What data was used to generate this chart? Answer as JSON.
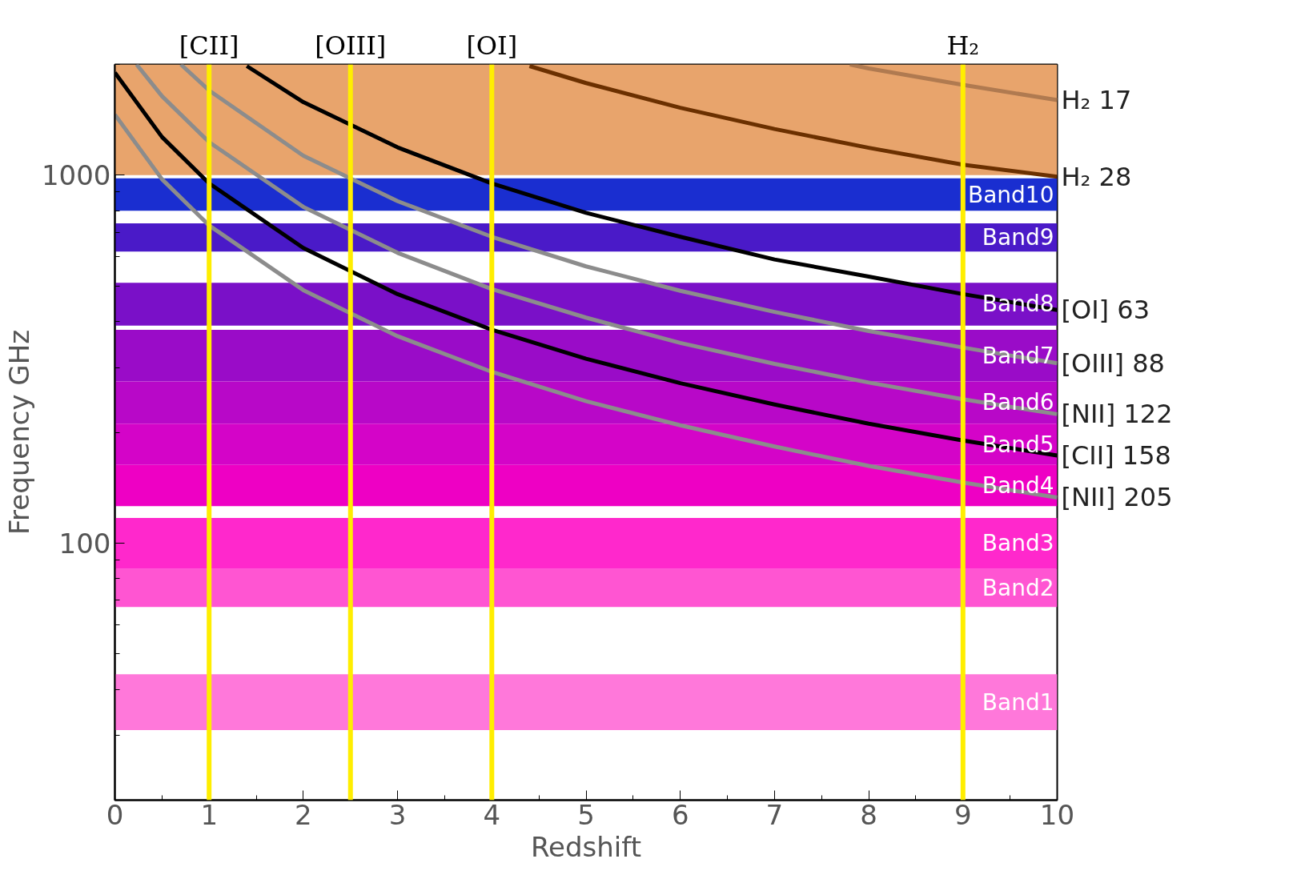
{
  "chart_data": {
    "type": "line",
    "xlabel": "Redshift",
    "ylabel": "Frequency GHz",
    "log": "y",
    "grid": false,
    "marker": "none",
    "line_style": "solid",
    "xlim": [
      0,
      10
    ],
    "xticks": [
      0,
      1,
      2,
      3,
      4,
      5,
      6,
      7,
      8,
      9,
      10
    ],
    "ylim": [
      20,
      2000
    ],
    "yticks": [
      100,
      1000
    ],
    "series": [
      {
        "name": "H₂ 17",
        "color": "#b07a50",
        "x": [
          7.8,
          8,
          9,
          10
        ],
        "values": [
          2000,
          1950,
          1760,
          1600
        ]
      },
      {
        "name": "H₂ 28",
        "color": "#6b3000",
        "x": [
          4.4,
          5,
          6,
          7,
          8,
          9,
          10
        ],
        "values": [
          1980,
          1780,
          1525,
          1335,
          1187,
          1068,
          990
        ]
      },
      {
        "name": "[OI] 63",
        "color": "#000000",
        "x": [
          1.4,
          2,
          3,
          4,
          5,
          6,
          7,
          8,
          9,
          10
        ],
        "values": [
          1980,
          1580,
          1190,
          950,
          790,
          680,
          590,
          530,
          475,
          430
        ]
      },
      {
        "name": "[OIII] 88",
        "color": "#8c8c8c",
        "x": [
          0.7,
          1,
          2,
          3,
          4,
          5,
          6,
          7,
          8,
          9,
          10
        ],
        "values": [
          2000,
          1700,
          1130,
          850,
          680,
          565,
          485,
          425,
          377,
          340,
          308
        ]
      },
      {
        "name": "[NII] 122",
        "color": "#8c8c8c",
        "x": [
          0.23,
          0.5,
          1,
          2,
          3,
          4,
          5,
          6,
          7,
          8,
          9,
          10
        ],
        "values": [
          2000,
          1640,
          1230,
          820,
          615,
          490,
          410,
          350,
          307,
          273,
          246,
          224
        ]
      },
      {
        "name": "[CII] 158",
        "color": "#000000",
        "x": [
          0,
          0.5,
          1,
          2,
          3,
          4,
          5,
          6,
          7,
          8,
          9,
          10
        ],
        "values": [
          1900,
          1270,
          950,
          634,
          475,
          380,
          317,
          272,
          238,
          211,
          190,
          173
        ]
      },
      {
        "name": "[NII] 205",
        "color": "#8c8c8c",
        "x": [
          0,
          0.5,
          1,
          2,
          3,
          4,
          5,
          6,
          7,
          8,
          9,
          10
        ],
        "values": [
          1460,
          975,
          730,
          487,
          365,
          292,
          243,
          209,
          183,
          162,
          146,
          133
        ]
      }
    ],
    "bands": [
      {
        "axis": "y",
        "from": 1000,
        "to": 2000,
        "color": "#e8a46c"
      },
      {
        "axis": "y",
        "from": 800,
        "to": 980,
        "label": "Band10",
        "color": "#1a2ed0"
      },
      {
        "axis": "y",
        "from": 620,
        "to": 740,
        "label": "Band9",
        "color": "#4a1ac8"
      },
      {
        "axis": "y",
        "from": 390,
        "to": 510,
        "label": "Band8",
        "color": "#7a10c8"
      },
      {
        "axis": "y",
        "from": 275,
        "to": 380,
        "label": "Band7",
        "color": "#9a0cc8"
      },
      {
        "axis": "y",
        "from": 211,
        "to": 275,
        "label": "Band6",
        "color": "#b808c8"
      },
      {
        "axis": "y",
        "from": 163,
        "to": 211,
        "label": "Band5",
        "color": "#d404c8"
      },
      {
        "axis": "y",
        "from": 126,
        "to": 163,
        "label": "Band4",
        "color": "#ee00c4"
      },
      {
        "axis": "y",
        "from": 85,
        "to": 117,
        "label": "Band3",
        "color": "#ff28cc"
      },
      {
        "axis": "y",
        "from": 67,
        "to": 85,
        "label": "Band2",
        "color": "#ff55d2"
      },
      {
        "axis": "y",
        "from": 31,
        "to": 44,
        "label": "Band1",
        "color": "#ff78da"
      }
    ],
    "ref_lines": [
      {
        "axis": "x",
        "value": 1,
        "label": "[CII]",
        "color": "#ffee00"
      },
      {
        "axis": "x",
        "value": 2.5,
        "label": "[OIII]",
        "color": "#ffee00"
      },
      {
        "axis": "x",
        "value": 4,
        "label": "[OI]",
        "color": "#ffee00"
      },
      {
        "axis": "x",
        "value": 9,
        "label": "H₂",
        "color": "#ffee00"
      }
    ]
  }
}
